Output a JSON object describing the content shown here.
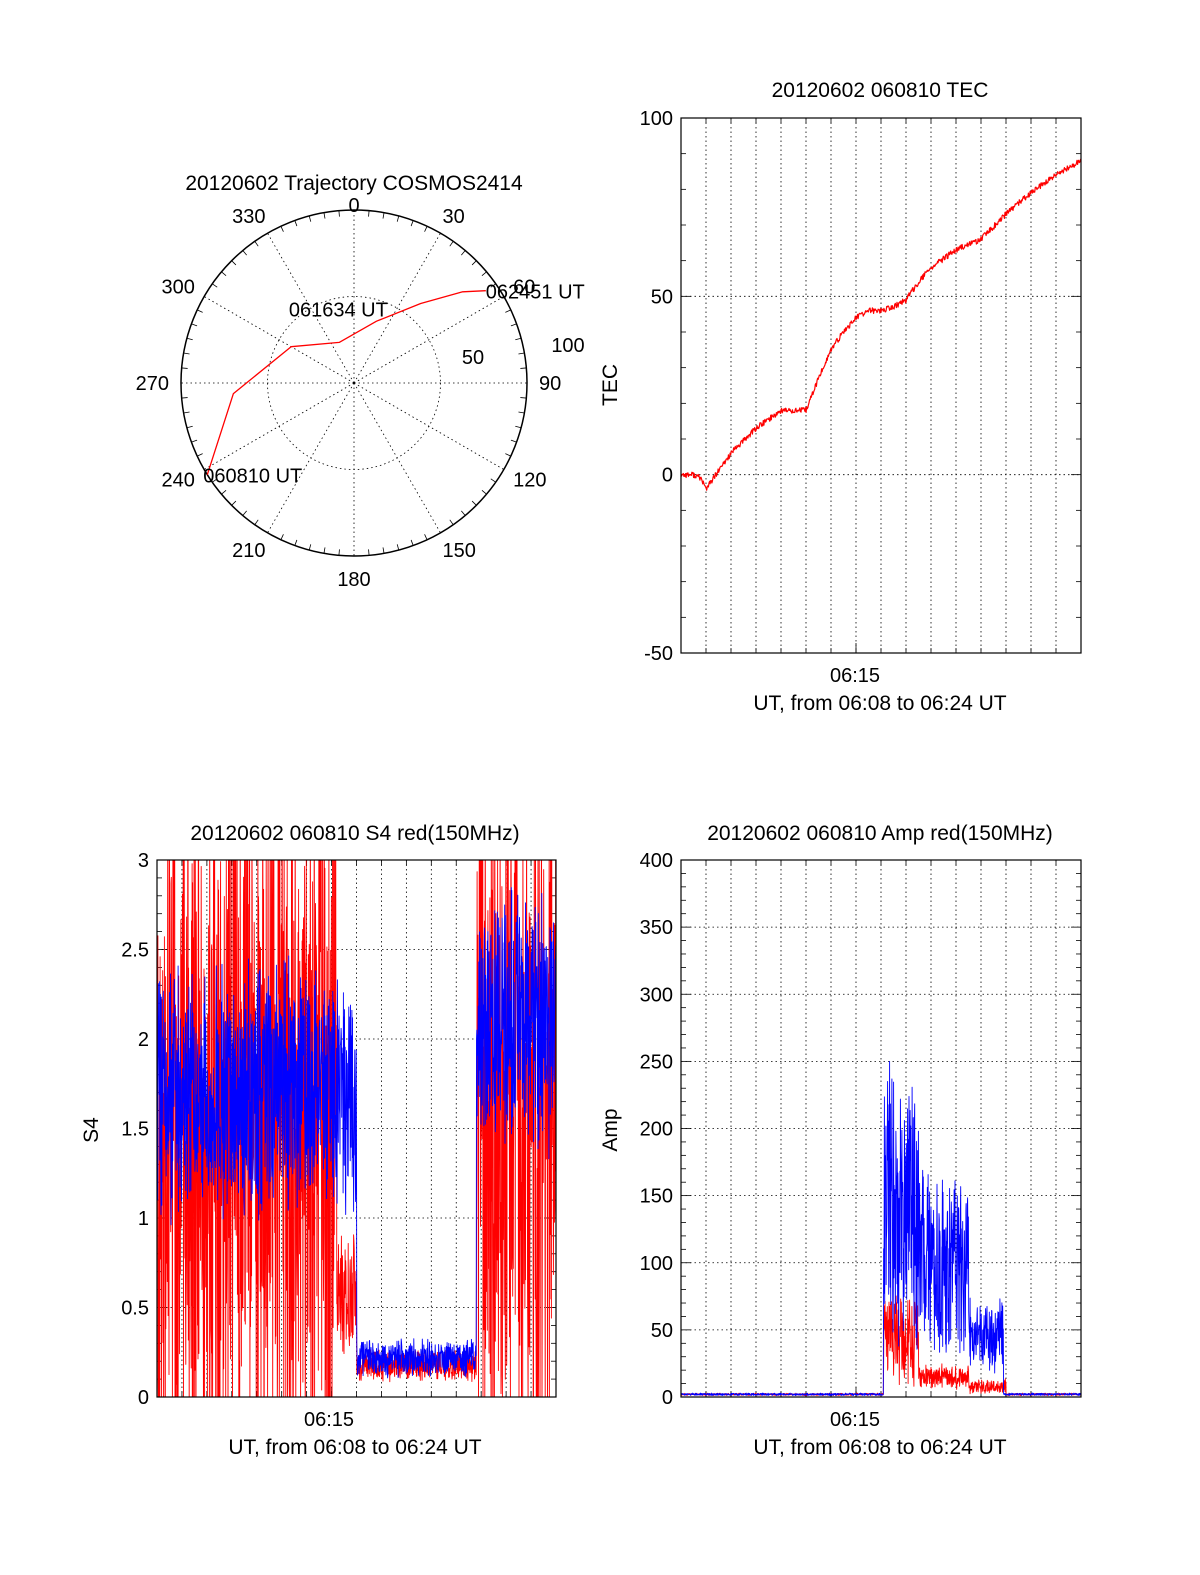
{
  "chart_data": [
    {
      "id": "trajectory",
      "type": "polar",
      "title": "20120602 Trajectory COSMOS2414",
      "angle_labels": [
        "0",
        "30",
        "60",
        "90",
        "120",
        "150",
        "180",
        "210",
        "240",
        "270",
        "300",
        "330"
      ],
      "radius_labels": [
        "50",
        "100"
      ],
      "rmax": 100,
      "grid": true,
      "series": [
        {
          "color": "#ff0000",
          "points": [
            [
              238,
              100
            ],
            [
              265,
              70
            ],
            [
              300,
              42
            ],
            [
              340,
              25
            ],
            [
              20,
              38
            ],
            [
              40,
              60
            ],
            [
              50,
              82
            ],
            [
              55,
              93
            ]
          ]
        }
      ],
      "annotations": [
        {
          "text": "062451 UT",
          "az": 55,
          "r": 93
        },
        {
          "text": "061634 UT",
          "az": 345,
          "r": 16
        },
        {
          "text": "060810 UT",
          "az": 238,
          "r": 100
        }
      ]
    },
    {
      "id": "tec",
      "type": "line",
      "title": "20120602 060810 TEC",
      "xlabel": "UT, from 06:08 to 06:24 UT",
      "ylabel": "TEC",
      "x_tick_label": "06:15",
      "yticks": [
        "-50",
        "0",
        "50",
        "100"
      ],
      "ylim": [
        -50,
        100
      ],
      "grid": true,
      "series": [
        {
          "color": "#ff0000",
          "x": [
            0,
            0.5,
            0.8,
            1,
            1.3,
            2,
            3,
            4,
            5,
            5.5,
            6,
            6.5,
            7,
            7.5,
            8,
            8.5,
            9,
            9.5,
            10,
            11,
            12,
            13,
            13.3,
            14,
            15,
            15.5,
            16
          ],
          "y": [
            0,
            0,
            -1,
            -4,
            -1,
            6,
            13,
            18,
            18,
            27,
            35,
            40,
            44,
            46,
            46,
            47,
            49,
            54,
            58,
            63,
            66,
            73,
            75,
            79,
            84,
            86,
            88
          ]
        }
      ]
    },
    {
      "id": "s4",
      "type": "line",
      "title": "20120602 060810 S4 red(150MHz)",
      "xlabel": "UT, from 06:08 to 06:24 UT",
      "ylabel": "S4",
      "x_tick_label": "06:15",
      "yticks": [
        "0",
        "0.5",
        "1",
        "1.5",
        "2",
        "2.5",
        "3"
      ],
      "ylim": [
        0,
        3
      ],
      "grid": true,
      "series": [
        {
          "color": "#ff0000",
          "segments": [
            {
              "x0": 0,
              "x1": 7.2,
              "mean": 1.5,
              "amp": 2.0
            },
            {
              "x0": 7.2,
              "x1": 8.0,
              "mean": 0.6,
              "amp": 0.4
            },
            {
              "x0": 8.0,
              "x1": 12.8,
              "mean": 0.18,
              "amp": 0.1
            },
            {
              "x0": 12.8,
              "x1": 16,
              "mean": 1.5,
              "amp": 2.0
            }
          ]
        },
        {
          "color": "#0000ff",
          "segments": [
            {
              "x0": 0,
              "x1": 8.0,
              "mean": 1.7,
              "amp": 0.8
            },
            {
              "x0": 8.0,
              "x1": 12.8,
              "mean": 0.22,
              "amp": 0.12
            },
            {
              "x0": 12.8,
              "x1": 16,
              "mean": 2.1,
              "amp": 0.8
            }
          ]
        }
      ]
    },
    {
      "id": "amp",
      "type": "line",
      "title": "20120602 060810 Amp red(150MHz)",
      "xlabel": "UT, from 06:08 to 06:24 UT",
      "ylabel": "Amp",
      "x_tick_label": "06:15",
      "yticks": [
        "0",
        "50",
        "100",
        "150",
        "200",
        "250",
        "300",
        "350",
        "400"
      ],
      "ylim": [
        0,
        400
      ],
      "grid": true,
      "series": [
        {
          "color": "#ff0000",
          "segments": [
            {
              "x0": 0,
              "x1": 8.1,
              "mean": 2,
              "amp": 1
            },
            {
              "x0": 8.1,
              "x1": 9.5,
              "mean": 45,
              "amp": 40
            },
            {
              "x0": 9.5,
              "x1": 11.5,
              "mean": 15,
              "amp": 10
            },
            {
              "x0": 11.5,
              "x1": 13.0,
              "mean": 8,
              "amp": 6
            },
            {
              "x0": 13.0,
              "x1": 16,
              "mean": 2,
              "amp": 1
            }
          ]
        },
        {
          "color": "#0000ff",
          "segments": [
            {
              "x0": 0,
              "x1": 8.1,
              "mean": 2,
              "amp": 1
            },
            {
              "x0": 8.1,
              "x1": 9.5,
              "mean": 150,
              "amp": 120
            },
            {
              "x0": 9.5,
              "x1": 11.5,
              "mean": 100,
              "amp": 80
            },
            {
              "x0": 11.5,
              "x1": 12.4,
              "mean": 45,
              "amp": 30
            },
            {
              "x0": 12.4,
              "x1": 12.9,
              "mean": 45,
              "amp": 35
            },
            {
              "x0": 12.9,
              "x1": 16,
              "mean": 2,
              "amp": 1
            }
          ]
        }
      ]
    }
  ]
}
